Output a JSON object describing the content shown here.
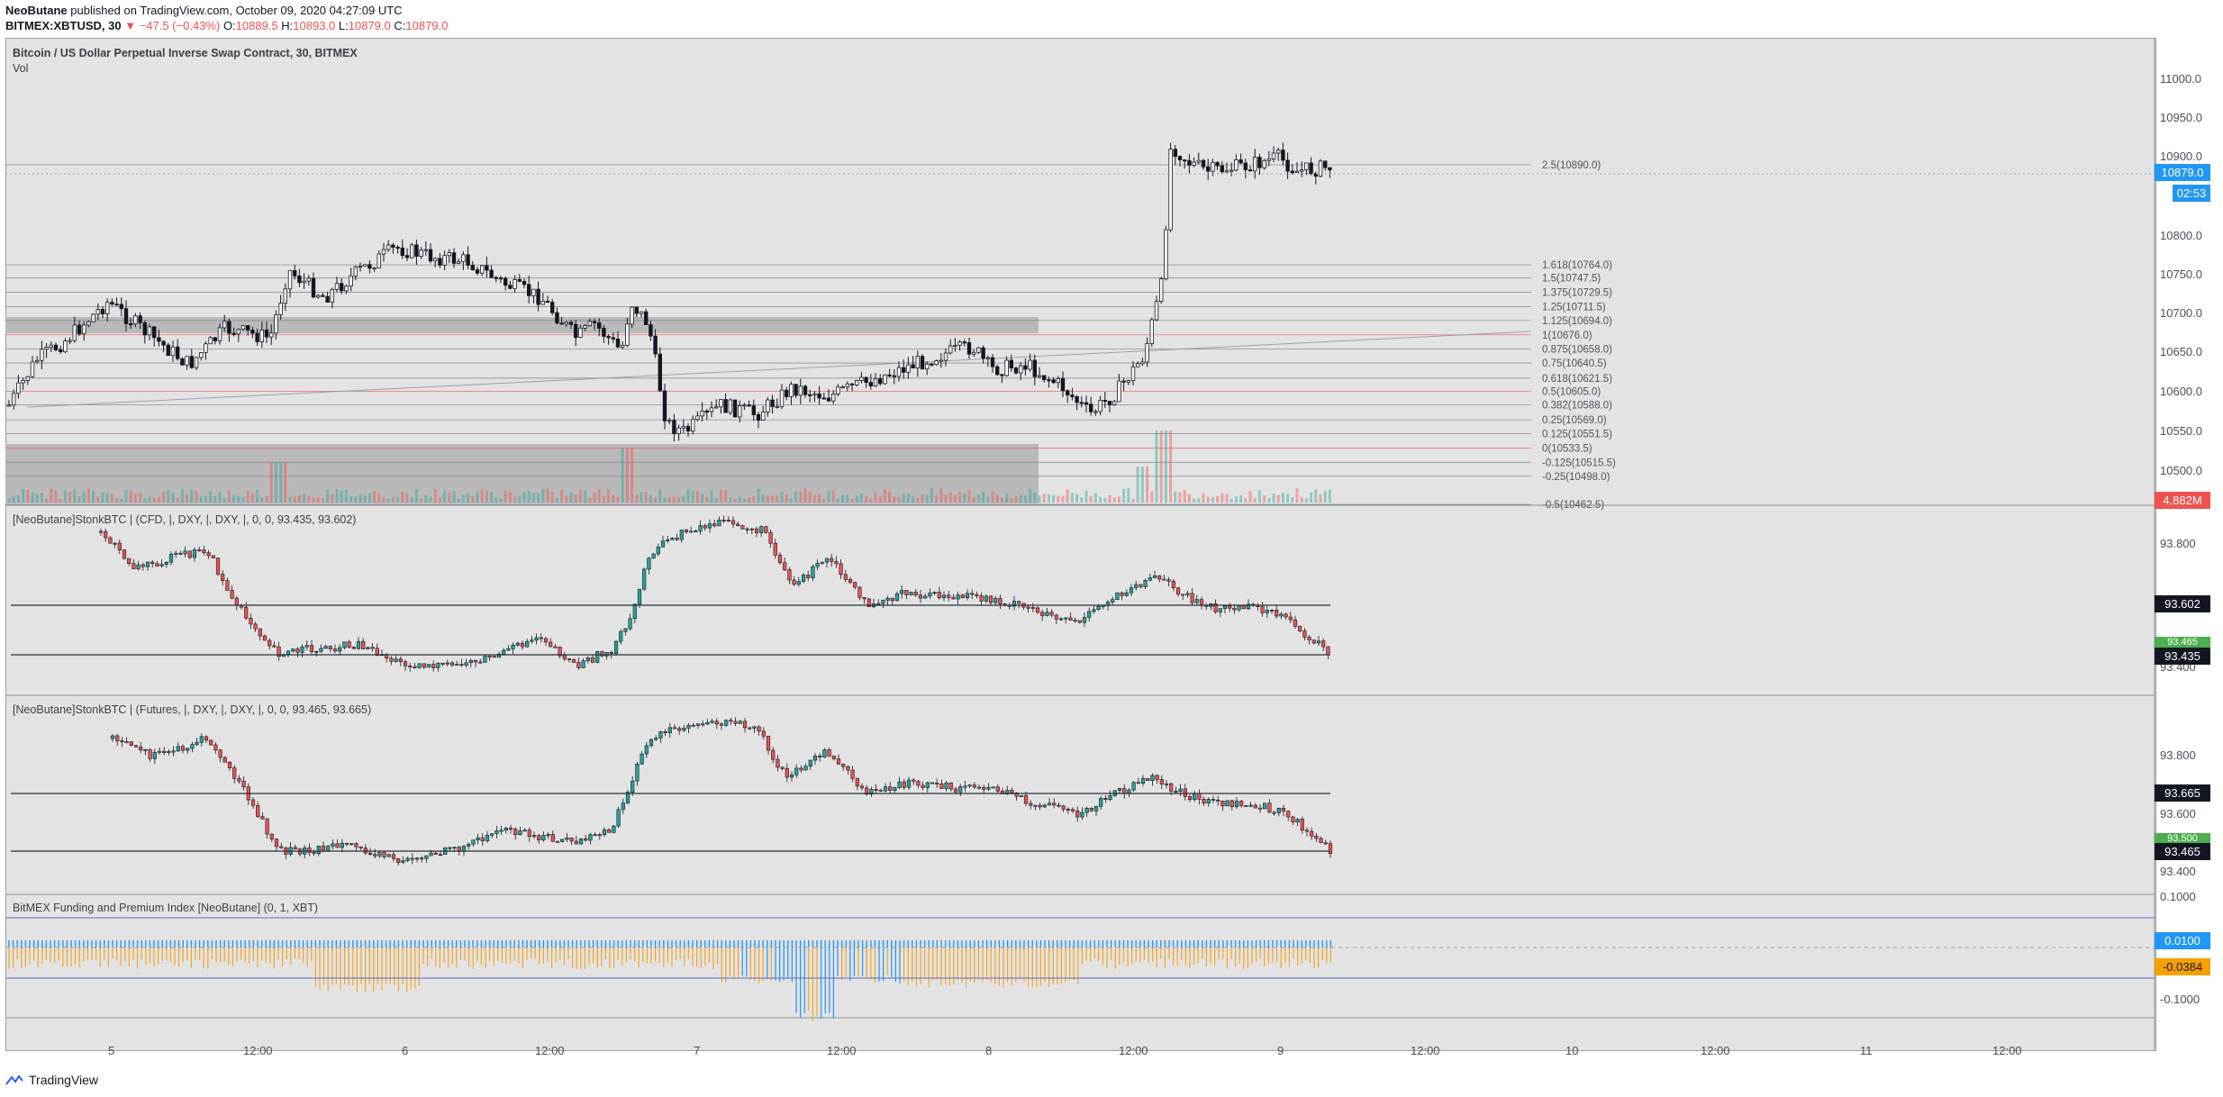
{
  "header": {
    "author": "NeoButane",
    "published": "published on TradingView.com, October 09, 2020 04:27:09 UTC",
    "symbol": "BITMEX:XBTUSD, 30",
    "change": "▼ −47.5 (−0.43%)",
    "o_label": "O:",
    "o_value": "10889.5",
    "h_label": "H:",
    "h_value": "10893.0",
    "l_label": "L:",
    "l_value": "10879.0",
    "c_label": "C:",
    "c_value": "10879.0"
  },
  "main_pane": {
    "title": "Bitcoin / US Dollar Perpetual Inverse Swap Contract, 30, BITMEX",
    "vol_label": "Vol",
    "y_ticks": [
      "11000.0",
      "10950.0",
      "10900.0",
      "10800.0",
      "10750.0",
      "10700.0",
      "10650.0",
      "10600.0",
      "10550.0",
      "10500.0"
    ],
    "last_price": "10879.0",
    "countdown": "02:53",
    "volume_tag": "4.882M",
    "fib_levels": [
      {
        "label": "2.5(10890.0)",
        "color": "#787b86"
      },
      {
        "label": "1.618(10764.0)",
        "color": "#787b86"
      },
      {
        "label": "1.5(10747.5)",
        "color": "#787b86"
      },
      {
        "label": "1.375(10729.5)",
        "color": "#787b86"
      },
      {
        "label": "1.25(10711.5)",
        "color": "#787b86"
      },
      {
        "label": "1.125(10694.0)",
        "color": "#787b86"
      },
      {
        "label": "1(10676.0)",
        "color": "#ef5350"
      },
      {
        "label": "0.875(10658.0)",
        "color": "#787b86"
      },
      {
        "label": "0.75(10640.5)",
        "color": "#787b86"
      },
      {
        "label": "0.618(10621.5)",
        "color": "#787b86"
      },
      {
        "label": "0.5(10605.0)",
        "color": "#ef5350"
      },
      {
        "label": "0.382(10588.0)",
        "color": "#787b86"
      },
      {
        "label": "0.25(10569.0)",
        "color": "#787b86"
      },
      {
        "label": "0.125(10551.5)",
        "color": "#787b86"
      },
      {
        "label": "0(10533.5)",
        "color": "#ef5350"
      },
      {
        "label": "-0.125(10515.5)",
        "color": "#787b86"
      },
      {
        "label": "-0.25(10498.0)",
        "color": "#787b86"
      },
      {
        "label": "-0.5(10462.5)",
        "color": "#787b86"
      }
    ]
  },
  "pane_cfd": {
    "title": "[NeoButane]StonkBTC |  (CFD, |, DXY, |, DXY, |, 0, 0, 93.435, 93.602)",
    "y_ticks": [
      "93.800",
      "93.400"
    ],
    "upper_level": "93.602",
    "lower_level": "93.435",
    "current_tag": "93.465"
  },
  "pane_futures": {
    "title": "[NeoButane]StonkBTC |  (Futures, |, DXY, |, DXY, |, 0, 0, 93.465, 93.665)",
    "y_ticks": [
      "93.800",
      "93.600",
      "93.400"
    ],
    "upper_level": "93.665",
    "lower_level": "93.465",
    "current_tag": "93.500"
  },
  "pane_funding": {
    "title": "BitMEX Funding and Premium Index [NeoButane] (0, 1, XBT)",
    "y_ticks": [
      "0.1000",
      "-0.1000"
    ],
    "funding_tag": "0.0100",
    "premium_tag": "-0.0384"
  },
  "x_axis": {
    "labels": [
      "5",
      "12:00",
      "6",
      "12:00",
      "7",
      "12:00",
      "8",
      "12:00",
      "9",
      "12:00",
      "10",
      "12:00",
      "11",
      "12:00"
    ]
  },
  "footer": {
    "brand": "TradingView"
  },
  "colors": {
    "up": "#26a69a",
    "down": "#ef5350",
    "candle_body_up": "#ffffff",
    "candle_body_down": "#ef5350",
    "dark_body": "#131722",
    "funding_blue": "#2196f3",
    "premium_orange": "#f5a623",
    "pane_bg": "#e3e3e3",
    "tag_dark": "#131722",
    "tag_blue": "#2196f3",
    "tag_orange": "#f59f00"
  }
}
